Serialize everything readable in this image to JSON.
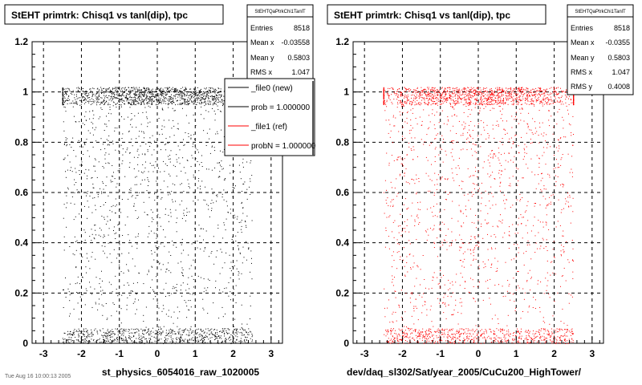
{
  "panels": [
    {
      "title": "StEHT primtrk: Chisq1 vs tanl(dip), tpc",
      "stats": {
        "name": "StEHTQaPtrkChi1TanlT",
        "rows": [
          {
            "label": "Entries",
            "value": "8518"
          },
          {
            "label": "Mean x",
            "value": "-0.03558"
          },
          {
            "label": "Mean y",
            "value": "0.5803"
          },
          {
            "label": "RMS x",
            "value": "1.047"
          }
        ]
      },
      "legend": {
        "items": [
          {
            "label": "_file0 (new)",
            "color": "#000000"
          },
          {
            "label": "prob = 1.000000",
            "color": "#000000"
          },
          {
            "label": "_file1 (ref)",
            "color": "#ff0000"
          },
          {
            "label": "probN = 1.000000",
            "color": "#ff0000"
          }
        ]
      },
      "xlabel": "st_physics_6054016_raw_1020005",
      "marker_color": "#000000"
    },
    {
      "title": "StEHT primtrk: Chisq1 vs tanl(dip), tpc",
      "stats": {
        "name": "StEHTQaPtrkChi1TanlT",
        "rows": [
          {
            "label": "Entries",
            "value": "8518"
          },
          {
            "label": "Mean x",
            "value": "-0.0355"
          },
          {
            "label": "Mean y",
            "value": "0.5803"
          },
          {
            "label": "RMS x",
            "value": "1.047"
          },
          {
            "label": "RMS y",
            "value": "0.4008"
          }
        ]
      },
      "xlabel": "dev/daq_sl302/Sat/year_2005/CuCu200_HighTower/",
      "marker_color": "#ff0000"
    }
  ],
  "chart_data": [
    {
      "type": "scatter",
      "title": "StEHT primtrk: Chisq1 vs tanl(dip), tpc",
      "xlabel": "st_physics_6054016_raw_1020005",
      "ylabel": "",
      "xlim": [
        -3.3,
        3.3
      ],
      "ylim": [
        0,
        1.2
      ],
      "xticks": [
        -3,
        -2,
        -1,
        0,
        1,
        2,
        3
      ],
      "yticks": [
        0,
        0.2,
        0.4,
        0.6,
        0.8,
        1,
        1.2
      ],
      "grid": true,
      "legend_position": "top-right",
      "entries": 8518,
      "mean_x": -0.03558,
      "mean_y": 0.5803,
      "rms_x": 1.047,
      "distribution": {
        "x_range": [
          -2.5,
          2.5
        ],
        "dense_band_y": [
          0.95,
          1.02
        ],
        "low_band_y": [
          0.0,
          0.06
        ],
        "uniform_y": [
          0.0,
          1.0
        ]
      }
    },
    {
      "type": "scatter",
      "title": "StEHT primtrk: Chisq1 vs tanl(dip), tpc",
      "xlabel": "dev/daq_sl302/Sat/year_2005/CuCu200_HighTower/",
      "ylabel": "",
      "xlim": [
        -3.3,
        3.3
      ],
      "ylim": [
        0,
        1.2
      ],
      "xticks": [
        -3,
        -2,
        -1,
        0,
        1,
        2,
        3
      ],
      "yticks": [
        0,
        0.2,
        0.4,
        0.6,
        0.8,
        1,
        1.2
      ],
      "grid": true,
      "entries": 8518,
      "mean_x": -0.0355,
      "mean_y": 0.5803,
      "rms_x": 1.047,
      "rms_y": 0.4008,
      "distribution": {
        "x_range": [
          -2.5,
          2.5
        ],
        "dense_band_y": [
          0.95,
          1.02
        ],
        "low_band_y": [
          0.0,
          0.06
        ],
        "uniform_y": [
          0.0,
          1.0
        ]
      }
    }
  ],
  "footer_text": "Tue Aug 16 10:00:13 2005"
}
